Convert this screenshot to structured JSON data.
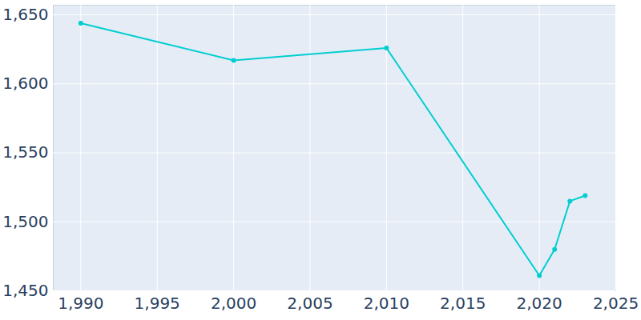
{
  "chart_data": {
    "type": "line",
    "x": [
      1990,
      2000,
      2010,
      2020,
      2021,
      2022,
      2023
    ],
    "values": [
      1644,
      1617,
      1626,
      1461,
      1480,
      1515,
      1519
    ],
    "color": "#00ced1",
    "marker": "circle",
    "xlim": [
      1988.2,
      2025
    ],
    "xticks": [
      1990,
      1995,
      2000,
      2005,
      2010,
      2015,
      2020,
      2025
    ],
    "ylim": [
      1450,
      1657
    ],
    "yticks": [
      1450,
      1500,
      1550,
      1600,
      1650
    ],
    "grid": true
  }
}
